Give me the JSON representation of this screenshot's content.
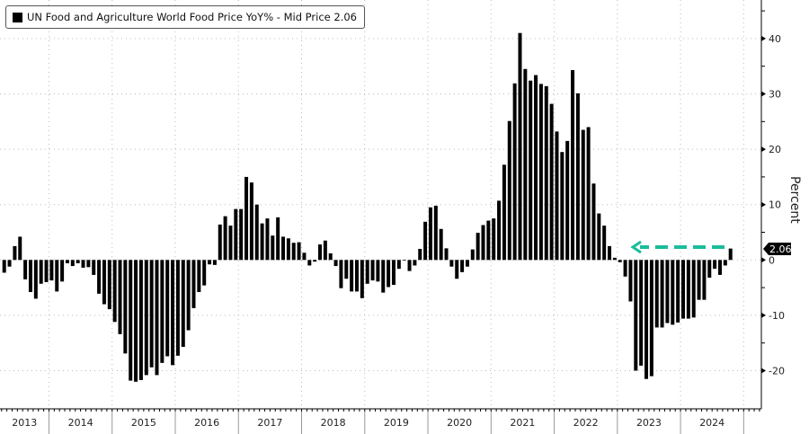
{
  "chart_data": {
    "type": "bar",
    "title": "UN Food and Agriculture World Food Price YoY% - Mid Price 2.06",
    "legend": "UN Food and Agriculture World Food Price YoY% - Mid Price 2.06",
    "legend_placement": "top-left",
    "ylabel": "Percent",
    "xlabel": "",
    "ylim": [
      -27,
      47
    ],
    "yticks": [
      -20,
      -10,
      0,
      10,
      20,
      30,
      40
    ],
    "ytick_labels": [
      "-20",
      "-10",
      "0",
      "10",
      "20",
      "30",
      "40"
    ],
    "grid": true,
    "start_month": "2013-04",
    "frequency": "monthly",
    "years": [
      "2013",
      "2014",
      "2015",
      "2016",
      "2017",
      "2018",
      "2019",
      "2020",
      "2021",
      "2022",
      "2023",
      "2024"
    ],
    "last_value_label": "2.06",
    "last_value": 2.06,
    "bar_color": "#000000",
    "arrow_color": "#1abc9c",
    "values": [
      -2.3,
      -1.2,
      2.5,
      4.2,
      -3.5,
      -5.8,
      -7.0,
      -4.3,
      -4.0,
      -3.7,
      -5.7,
      -3.9,
      -0.6,
      -1.1,
      -0.6,
      -1.4,
      -1.3,
      -2.7,
      -6.1,
      -8.0,
      -8.9,
      -11.2,
      -13.4,
      -16.9,
      -21.8,
      -22.0,
      -21.7,
      -20.8,
      -19.4,
      -20.8,
      -18.6,
      -17.4,
      -19.0,
      -17.3,
      -15.7,
      -12.7,
      -8.7,
      -5.8,
      -4.6,
      -0.8,
      -0.9,
      6.4,
      7.9,
      6.2,
      9.2,
      9.2,
      15.0,
      14.0,
      10.0,
      6.6,
      7.5,
      4.4,
      7.7,
      4.2,
      3.9,
      3.1,
      3.2,
      1.3,
      -1.0,
      -0.3,
      2.8,
      3.5,
      1.2,
      -1.1,
      -5.1,
      -3.4,
      -5.7,
      -5.7,
      -6.9,
      -4.3,
      -3.7,
      -3.9,
      -5.9,
      -4.9,
      -4.5,
      -1.6,
      -0.1,
      -2.0,
      -1.0,
      2.0,
      6.9,
      9.5,
      9.8,
      5.6,
      2.1,
      -1.2,
      -3.4,
      -2.2,
      -1.2,
      1.9,
      4.9,
      6.3,
      7.1,
      7.5,
      10.7,
      17.2,
      25.1,
      31.9,
      41.0,
      34.5,
      32.4,
      33.4,
      31.8,
      31.4,
      28.2,
      23.2,
      19.5,
      21.5,
      34.3,
      30.1,
      23.5,
      24.0,
      13.8,
      8.4,
      6.2,
      2.5,
      0.4,
      -0.4,
      -3.0,
      -7.5,
      -20.0,
      -19.1,
      -21.5,
      -21.0,
      -12.2,
      -12.2,
      -11.4,
      -11.7,
      -11.3,
      -10.6,
      -10.6,
      -10.4,
      -7.2,
      -7.2,
      -3.2,
      -1.6,
      -2.7,
      -1.0,
      2.06
    ]
  }
}
